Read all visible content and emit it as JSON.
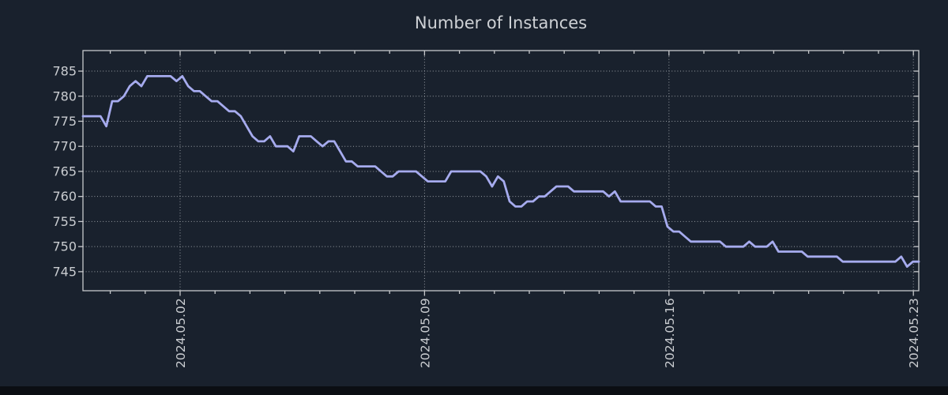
{
  "page": {
    "background_color": "#19212d",
    "bottom_bar_color": "#0b0e13"
  },
  "chart_data": {
    "type": "line",
    "title": "Number of Instances",
    "line_color": "#a6abee",
    "axis_text_color": "#c9ccd0",
    "spine_color": "#c6c8cb",
    "title_color": "#ced1d5",
    "grid": {
      "show": true,
      "style": "dotted",
      "color": "#c9cdd1",
      "opacity": 0.72
    },
    "legend_position": "none",
    "y_ticks": [
      745,
      750,
      755,
      760,
      765,
      770,
      775,
      780,
      785
    ],
    "ylim": [
      741.2,
      789.1
    ],
    "x_axis": {
      "tick_labels": [
        "2024.05.02",
        "2024.05.09",
        "2024.05.16",
        "2024.05.23"
      ],
      "major_day_indices": [
        2,
        9,
        16,
        23
      ],
      "n_day_ticks": 24,
      "first_tick_frac": 0.0327,
      "day_frac": 0.041777,
      "label_rotation_deg": -90
    },
    "values": [
      776,
      776,
      776,
      776,
      774,
      779,
      779,
      780,
      782,
      783,
      782,
      784,
      784,
      784,
      784,
      784,
      783,
      784,
      782,
      781,
      781,
      780,
      779,
      779,
      778,
      777,
      777,
      776,
      774,
      772,
      771,
      771,
      772,
      770,
      770,
      770,
      769,
      772,
      772,
      772,
      771,
      770,
      771,
      771,
      769,
      767,
      767,
      766,
      766,
      766,
      766,
      765,
      764,
      764,
      765,
      765,
      765,
      765,
      764,
      763,
      763,
      763,
      763,
      765,
      765,
      765,
      765,
      765,
      765,
      764,
      762,
      764,
      763,
      759,
      758,
      758,
      759,
      759,
      760,
      760,
      761,
      762,
      762,
      762,
      761,
      761,
      761,
      761,
      761,
      761,
      760,
      761,
      759,
      759,
      759,
      759,
      759,
      759,
      758,
      758,
      754,
      753,
      753,
      752,
      751,
      751,
      751,
      751,
      751,
      751,
      750,
      750,
      750,
      750,
      751,
      750,
      750,
      750,
      751,
      749,
      749,
      749,
      749,
      749,
      748,
      748,
      748,
      748,
      748,
      748,
      747,
      747,
      747,
      747,
      747,
      747,
      747,
      747,
      747,
      747,
      748,
      746,
      747,
      747
    ]
  }
}
